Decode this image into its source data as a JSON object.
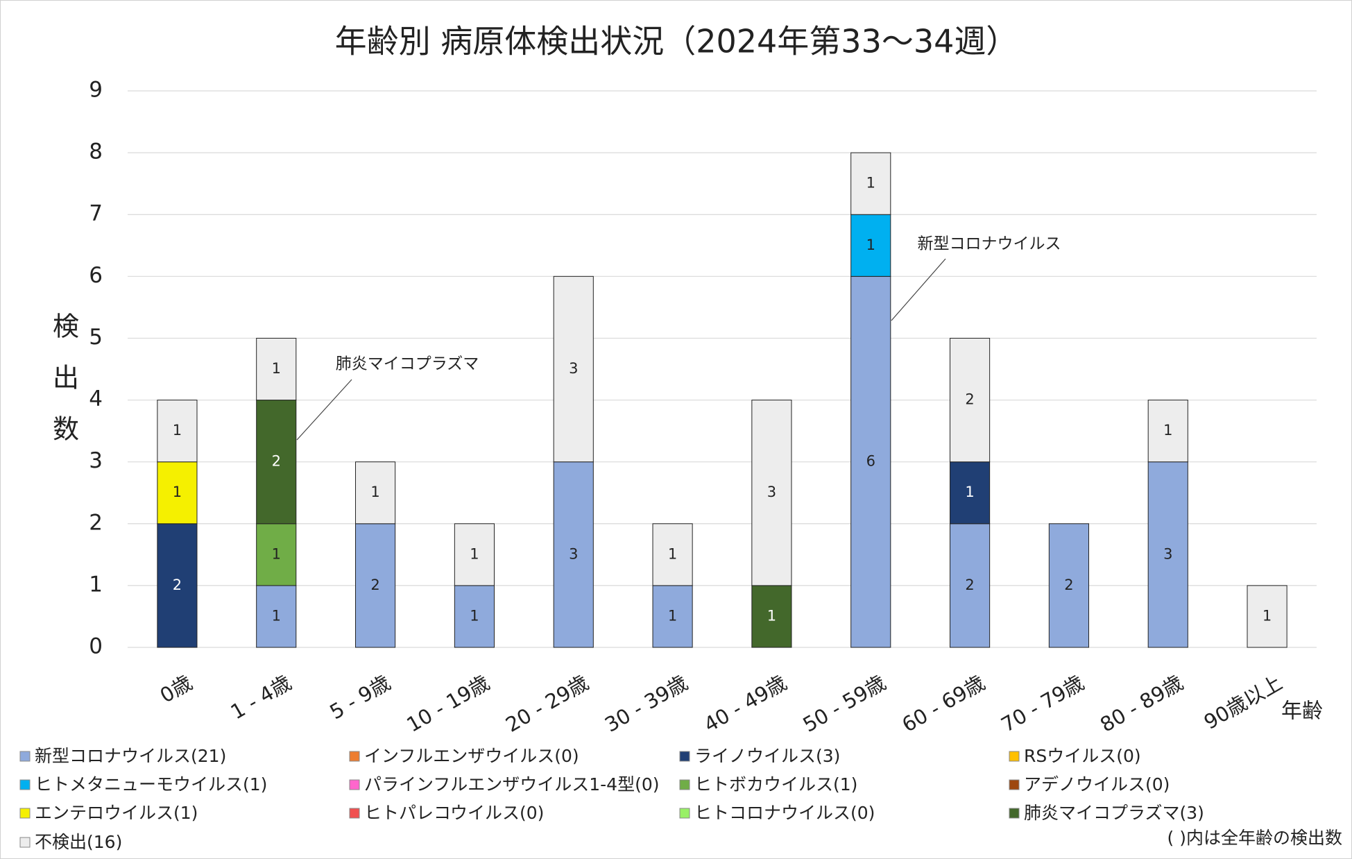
{
  "chart_data": {
    "type": "stacked_bar",
    "title": "年齢別 病原体検出状況（2024年第33～34週）",
    "y_label": "検出数",
    "x_label": "年齢",
    "footnote": "( )内は全年齢の検出数",
    "categories": [
      "0歳",
      "1 - 4歳",
      "5 - 9歳",
      "10 - 19歳",
      "20 - 29歳",
      "30 - 39歳",
      "40 - 49歳",
      "50 - 59歳",
      "60 - 69歳",
      "70 - 79歳",
      "80 - 89歳",
      "90歳以上"
    ],
    "series": [
      {
        "name": "新型コロナウイルス(21)",
        "color": "#8faadc",
        "values": [
          0,
          1,
          2,
          1,
          3,
          1,
          0,
          6,
          2,
          2,
          3,
          0
        ]
      },
      {
        "name": "インフルエンザウイルス(0)",
        "color": "#ed7d31",
        "values": [
          0,
          0,
          0,
          0,
          0,
          0,
          0,
          0,
          0,
          0,
          0,
          0
        ]
      },
      {
        "name": "ライノウイルス(3)",
        "color": "#203f74",
        "values": [
          2,
          0,
          0,
          0,
          0,
          0,
          0,
          0,
          1,
          0,
          0,
          0
        ]
      },
      {
        "name": "RSウイルス(0)",
        "color": "#ffc000",
        "values": [
          0,
          0,
          0,
          0,
          0,
          0,
          0,
          0,
          0,
          0,
          0,
          0
        ]
      },
      {
        "name": "ヒトメタニューモウイルス(1)",
        "color": "#00b0f0",
        "values": [
          0,
          0,
          0,
          0,
          0,
          0,
          0,
          1,
          0,
          0,
          0,
          0
        ]
      },
      {
        "name": "パラインフルエンザウイルス1-4型(0)",
        "color": "#ff66cc",
        "values": [
          0,
          0,
          0,
          0,
          0,
          0,
          0,
          0,
          0,
          0,
          0,
          0
        ]
      },
      {
        "name": "ヒトボカウイルス(1)",
        "color": "#70ad47",
        "values": [
          0,
          1,
          0,
          0,
          0,
          0,
          0,
          0,
          0,
          0,
          0,
          0
        ]
      },
      {
        "name": "アデノウイルス(0)",
        "color": "#9e480e",
        "values": [
          0,
          0,
          0,
          0,
          0,
          0,
          0,
          0,
          0,
          0,
          0,
          0
        ]
      },
      {
        "name": "エンテロウイルス(1)",
        "color": "#f5f000",
        "values": [
          1,
          0,
          0,
          0,
          0,
          0,
          0,
          0,
          0,
          0,
          0,
          0
        ]
      },
      {
        "name": "ヒトパレコウイルス(0)",
        "color": "#f05050",
        "values": [
          0,
          0,
          0,
          0,
          0,
          0,
          0,
          0,
          0,
          0,
          0,
          0
        ]
      },
      {
        "name": "ヒトコロナウイルス(0)",
        "color": "#99f066",
        "values": [
          0,
          0,
          0,
          0,
          0,
          0,
          0,
          0,
          0,
          0,
          0,
          0
        ]
      },
      {
        "name": "肺炎マイコプラズマ(3)",
        "color": "#43682b",
        "values": [
          0,
          2,
          0,
          0,
          0,
          0,
          1,
          0,
          0,
          0,
          0,
          0
        ]
      },
      {
        "name": "不検出(16)",
        "color": "#ededed",
        "values": [
          1,
          1,
          1,
          1,
          3,
          1,
          3,
          1,
          2,
          0,
          1,
          1
        ]
      }
    ],
    "annotations": [
      "新型コロナウイルス",
      "肺炎マイコプラズマ"
    ],
    "ylim": [
      0,
      9
    ],
    "yticks": [
      0,
      1,
      2,
      3,
      4,
      5,
      6,
      7,
      8,
      9
    ],
    "grid": true
  }
}
